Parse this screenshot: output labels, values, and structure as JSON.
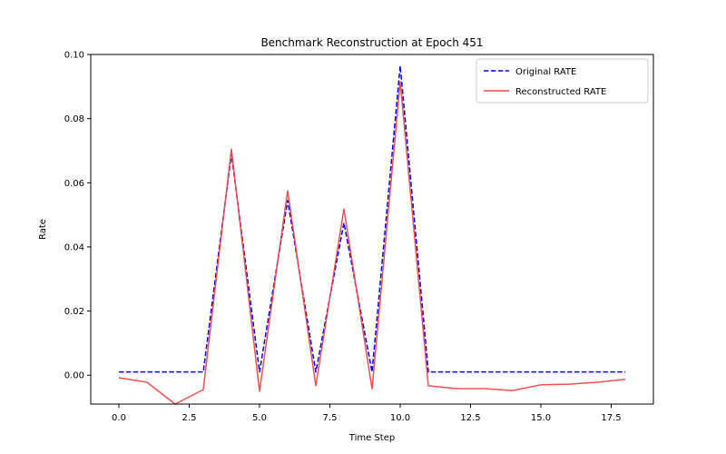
{
  "chart_data": {
    "type": "line",
    "title": "Benchmark Reconstruction at Epoch 451",
    "xlabel": "Time Step",
    "ylabel": "Rate",
    "xlim": [
      -1.0,
      19.0
    ],
    "ylim": [
      -0.009,
      0.1
    ],
    "xticks": [
      0.0,
      2.5,
      5.0,
      7.5,
      10.0,
      12.5,
      15.0,
      17.5
    ],
    "xtick_labels": [
      "0.0",
      "2.5",
      "5.0",
      "7.5",
      "10.0",
      "12.5",
      "15.0",
      "17.5"
    ],
    "yticks": [
      0.0,
      0.02,
      0.04,
      0.06,
      0.08,
      0.1
    ],
    "ytick_labels": [
      "0.00",
      "0.02",
      "0.04",
      "0.06",
      "0.08",
      "0.10"
    ],
    "grid": false,
    "legend_position": "top-right",
    "x": [
      0,
      1,
      2,
      3,
      4,
      5,
      6,
      7,
      8,
      9,
      10,
      11,
      12,
      13,
      14,
      15,
      16,
      17,
      18
    ],
    "series": [
      {
        "name": "Original RATE",
        "color": "#0000ff",
        "style": "dashed",
        "values": [
          0.001,
          0.001,
          0.001,
          0.001,
          0.069,
          0.001,
          0.0545,
          0.001,
          0.0475,
          0.001,
          0.0965,
          0.001,
          0.001,
          0.001,
          0.001,
          0.001,
          0.001,
          0.001,
          0.001
        ]
      },
      {
        "name": "Reconstructed RATE",
        "color": "#f04646",
        "style": "solid",
        "values": [
          -0.0008,
          -0.0022,
          -0.009,
          -0.0045,
          0.0705,
          -0.005,
          0.0575,
          -0.0033,
          0.0518,
          -0.0043,
          0.0915,
          -0.0033,
          -0.0042,
          -0.0042,
          -0.0048,
          -0.003,
          -0.0028,
          -0.0022,
          -0.0013
        ]
      }
    ]
  }
}
